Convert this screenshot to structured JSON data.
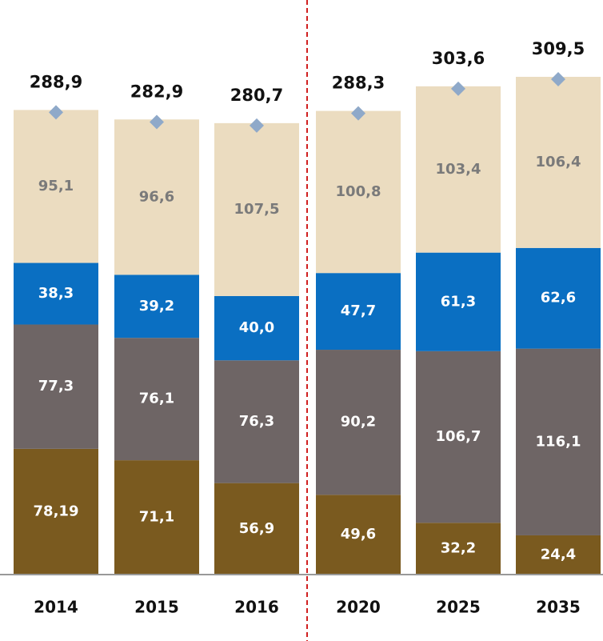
{
  "chart_data": {
    "type": "stacked_bar",
    "categories": [
      "2014",
      "2015",
      "2016",
      "2020",
      "2025",
      "2035"
    ],
    "series": [
      {
        "color": "#7a5a1f",
        "label_color": "#ffffff",
        "values": [
          78.19,
          71.1,
          56.9,
          49.6,
          32.2,
          24.4
        ],
        "value_labels": [
          "78,19",
          "71,1",
          "56,9",
          "49,6",
          "32,2",
          "24,4"
        ]
      },
      {
        "color": "#6e6565",
        "label_color": "#ffffff",
        "values": [
          77.3,
          76.1,
          76.3,
          90.2,
          106.7,
          116.1
        ],
        "value_labels": [
          "77,3",
          "76,1",
          "76,3",
          "90,2",
          "106,7",
          "116,1"
        ]
      },
      {
        "color": "#0a6fc2",
        "label_color": "#ffffff",
        "values": [
          38.3,
          39.2,
          40.0,
          47.7,
          61.3,
          62.6
        ],
        "value_labels": [
          "38,3",
          "39,2",
          "40,0",
          "47,7",
          "61,3",
          "62,6"
        ]
      },
      {
        "color": "#ebdcc0",
        "label_color": "#7a7a7a",
        "values": [
          95.1,
          96.6,
          107.5,
          100.8,
          103.4,
          106.4
        ],
        "value_labels": [
          "95,1",
          "96,6",
          "107,5",
          "100,8",
          "103,4",
          "106,4"
        ]
      }
    ],
    "totals": {
      "color": "#8fa9c9",
      "values": [
        288.9,
        282.9,
        280.7,
        288.3,
        303.6,
        309.5
      ],
      "value_labels": [
        "288,9",
        "282,9",
        "280,7",
        "288,3",
        "303,6",
        "309,5"
      ]
    }
  }
}
